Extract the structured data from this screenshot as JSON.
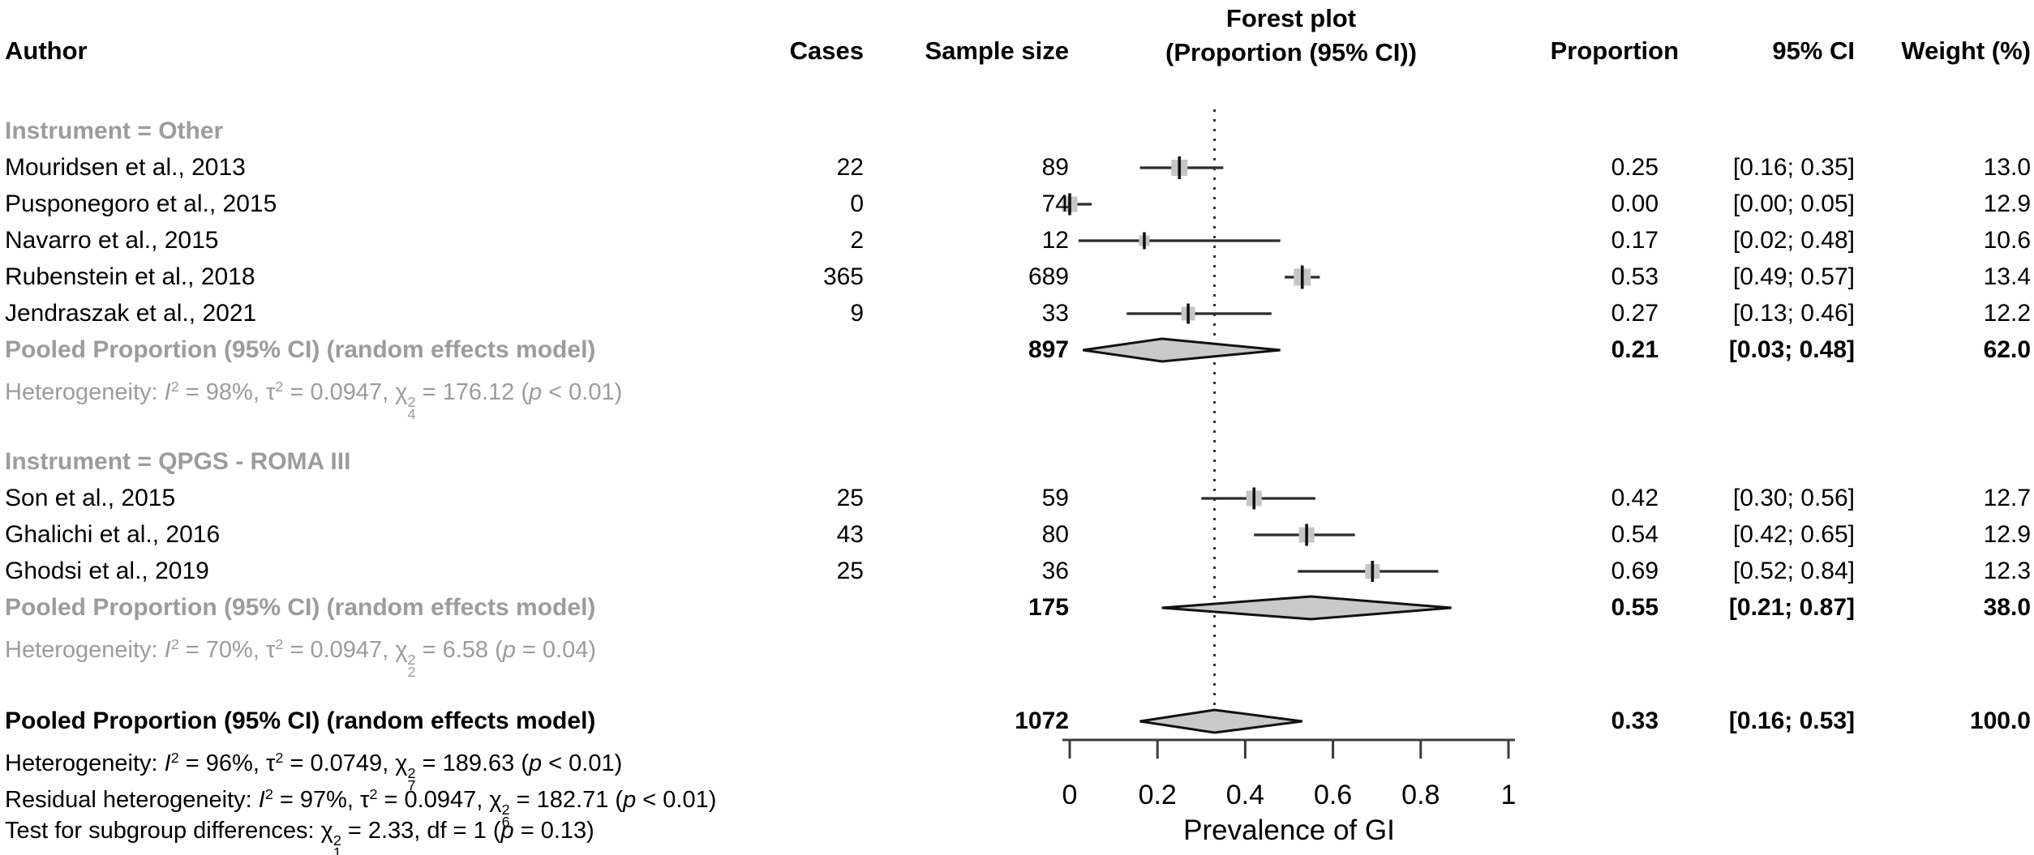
{
  "columns": {
    "author": "Author",
    "cases": "Cases",
    "sample_size": "Sample size",
    "plot_title": "Forest plot",
    "plot_subtitle": "(Proportion (95% CI))",
    "proportion": "Proportion",
    "ci": "95% CI",
    "weight": "Weight (%)"
  },
  "chart_data": {
    "type": "forest",
    "title": "Forest plot",
    "subtitle": "(Proportion (95% CI))",
    "xlabel": "Prevalence of GI",
    "xlim": [
      0,
      1
    ],
    "xticks": [
      "0",
      "0.2",
      "0.4",
      "0.6",
      "0.8",
      "1"
    ],
    "xtick_values": [
      0,
      0.2,
      0.4,
      0.6,
      0.8,
      1
    ],
    "reference_line": 0.33,
    "groups": [
      {
        "label": "Instrument = Other",
        "studies": [
          {
            "author": "Mouridsen et al., 2013",
            "cases": "22",
            "sample_size": "89",
            "est": 0.25,
            "lo": 0.16,
            "hi": 0.35,
            "proportion": "0.25",
            "ci": "[0.16; 0.35]",
            "weight": "13.0"
          },
          {
            "author": "Pusponegoro et al., 2015",
            "cases": "0",
            "sample_size": "74",
            "est": 0.0,
            "lo": 0.0,
            "hi": 0.05,
            "proportion": "0.00",
            "ci": "[0.00; 0.05]",
            "weight": "12.9"
          },
          {
            "author": "Navarro et al., 2015",
            "cases": "2",
            "sample_size": "12",
            "est": 0.17,
            "lo": 0.02,
            "hi": 0.48,
            "proportion": "0.17",
            "ci": "[0.02; 0.48]",
            "weight": "10.6"
          },
          {
            "author": "Rubenstein et al., 2018",
            "cases": "365",
            "sample_size": "689",
            "est": 0.53,
            "lo": 0.49,
            "hi": 0.57,
            "proportion": "0.53",
            "ci": "[0.49; 0.57]",
            "weight": "13.4"
          },
          {
            "author": "Jendraszak et al., 2021",
            "cases": "9",
            "sample_size": "33",
            "est": 0.27,
            "lo": 0.13,
            "hi": 0.46,
            "proportion": "0.27",
            "ci": "[0.13; 0.46]",
            "weight": "12.2"
          }
        ],
        "pooled": {
          "label": "Pooled Proportion (95% CI) (random effects model)",
          "sample_size": "897",
          "est": 0.21,
          "lo": 0.03,
          "hi": 0.48,
          "proportion": "0.21",
          "ci": "[0.03; 0.48]",
          "weight": "62.0"
        },
        "heterogeneity": [
          {
            "t": "Heterogeneity: "
          },
          {
            "it": "I"
          },
          {
            "sup": "2"
          },
          {
            "t": " = 98%, τ"
          },
          {
            "sup": "2"
          },
          {
            "t": " = 0.0947, "
          },
          {
            "chi": [
              "2",
              "4"
            ]
          },
          {
            "t": " = 176.12 ("
          },
          {
            "it": "p"
          },
          {
            "t": " < 0.01)"
          }
        ]
      },
      {
        "label": "Instrument = QPGS - ROMA III",
        "studies": [
          {
            "author": "Son et al., 2015",
            "cases": "25",
            "sample_size": "59",
            "est": 0.42,
            "lo": 0.3,
            "hi": 0.56,
            "proportion": "0.42",
            "ci": "[0.30; 0.56]",
            "weight": "12.7"
          },
          {
            "author": "Ghalichi et al., 2016",
            "cases": "43",
            "sample_size": "80",
            "est": 0.54,
            "lo": 0.42,
            "hi": 0.65,
            "proportion": "0.54",
            "ci": "[0.42; 0.65]",
            "weight": "12.9"
          },
          {
            "author": "Ghodsi et al., 2019",
            "cases": "25",
            "sample_size": "36",
            "est": 0.69,
            "lo": 0.52,
            "hi": 0.84,
            "proportion": "0.69",
            "ci": "[0.52; 0.84]",
            "weight": "12.3"
          }
        ],
        "pooled": {
          "label": "Pooled Proportion (95% CI) (random effects model)",
          "sample_size": "175",
          "est": 0.55,
          "lo": 0.21,
          "hi": 0.87,
          "proportion": "0.55",
          "ci": "[0.21; 0.87]",
          "weight": "38.0"
        },
        "heterogeneity": [
          {
            "t": "Heterogeneity: "
          },
          {
            "it": "I"
          },
          {
            "sup": "2"
          },
          {
            "t": " = 70%, τ"
          },
          {
            "sup": "2"
          },
          {
            "t": " = 0.0947, "
          },
          {
            "chi": [
              "2",
              "2"
            ]
          },
          {
            "t": " = 6.58 ("
          },
          {
            "it": "p"
          },
          {
            "t": " = 0.04)"
          }
        ]
      }
    ],
    "overall": {
      "label": "Pooled Proportion (95% CI) (random effects model)",
      "sample_size": "1072",
      "est": 0.33,
      "lo": 0.16,
      "hi": 0.53,
      "proportion": "0.33",
      "ci": "[0.16; 0.53]",
      "weight": "100.0"
    },
    "footnotes": [
      [
        {
          "t": "Heterogeneity: "
        },
        {
          "it": "I"
        },
        {
          "sup": "2"
        },
        {
          "t": " = 96%, τ"
        },
        {
          "sup": "2"
        },
        {
          "t": " = 0.0749, "
        },
        {
          "chi": [
            "2",
            "7"
          ]
        },
        {
          "t": " = 189.63 ("
        },
        {
          "it": "p"
        },
        {
          "t": " < 0.01)"
        }
      ],
      [
        {
          "t": "Residual heterogeneity: "
        },
        {
          "it": "I"
        },
        {
          "sup": "2"
        },
        {
          "t": " = 97%, τ"
        },
        {
          "sup": "2"
        },
        {
          "t": " = 0.0947, "
        },
        {
          "chi": [
            "2",
            "6"
          ]
        },
        {
          "t": " = 182.71 ("
        },
        {
          "it": "p"
        },
        {
          "t": " < 0.01)"
        }
      ],
      [
        {
          "t": "Test for subgroup differences: "
        },
        {
          "chi": [
            "2",
            "1"
          ]
        },
        {
          "t": " = 2.33, df = 1 ("
        },
        {
          "it": "p"
        },
        {
          "t": " = 0.13)"
        }
      ]
    ],
    "colors": {
      "text": "#000000",
      "muted": "#9c9c9c",
      "marker_fill": "#c6c6c6",
      "diamond_fill": "#c9c9c9",
      "line": "#2b2b2b"
    }
  }
}
